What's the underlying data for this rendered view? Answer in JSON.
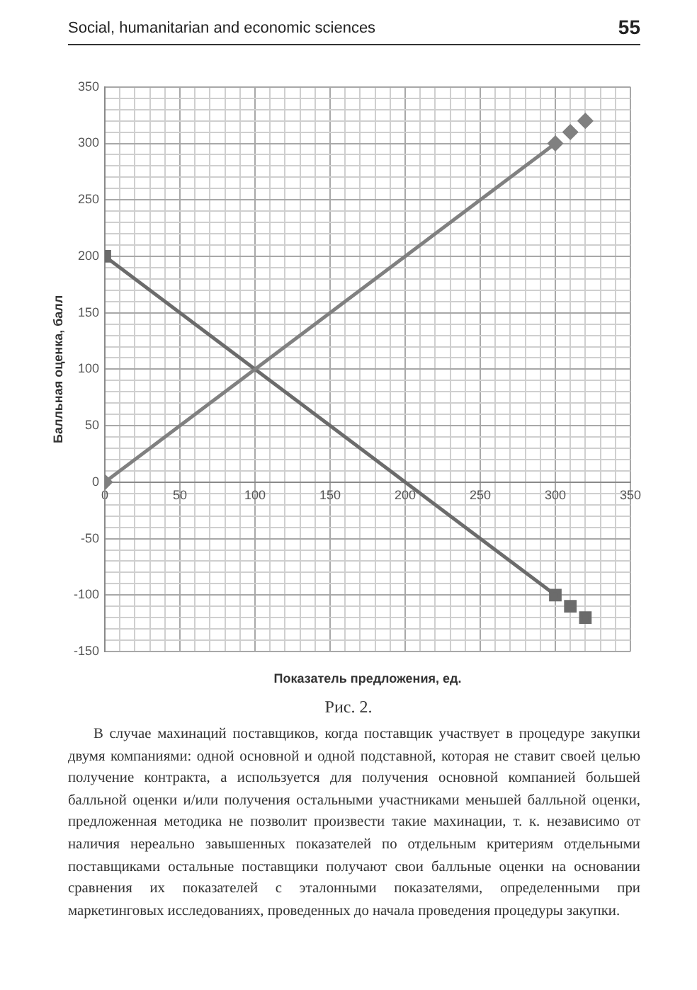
{
  "chart_data": {
    "type": "line",
    "xlabel": "Показатель предложения, ед.",
    "ylabel": "Балльная оценка, балл",
    "annotations": [
      "Social, humanitarian and economic sciences",
      "55",
      "Рис. 2.",
      "В случае махинаций поставщиков, когда поставщик участвует в процедуре закупки двумя компаниями: одной основной и одной подставной, которая не ставит своей целью получение контракта, а используется для получения основной компанией большей балльной оценки и/или получения остальными участниками меньшей балльной оценки, предложенная методика не позволит произвести такие махинации, т. к. независимо от наличия нереально завышенных показателей по отдельным критериям отдельными поставщиками остальные поставщики получают свои балльные оценки на основании сравнения их показателей с эталонными показателями, определенными при маркетинговых исследованиях, проведенных до начала проведения процедуры закупки."
    ],
    "series": [
      {
        "type": "line",
        "marker": "diamond",
        "color": "#808080",
        "x": [
          0,
          300
        ],
        "values": [
          0,
          300
        ]
      },
      {
        "type": "scatter",
        "marker": "diamond",
        "color": "#808080",
        "x": [
          310,
          320
        ],
        "values": [
          310,
          320
        ]
      },
      {
        "type": "line",
        "marker": "square",
        "color": "#6b6b6b",
        "x": [
          0,
          300
        ],
        "values": [
          200,
          -100
        ]
      },
      {
        "type": "scatter",
        "marker": "square",
        "color": "#6b6b6b",
        "x": [
          310,
          320
        ],
        "values": [
          -110,
          -120
        ]
      }
    ],
    "xlim": [
      0,
      350
    ],
    "ylim": [
      -150,
      350
    ],
    "xticks": [
      0,
      {
        "value": 10,
        "label": null
      },
      {
        "value": 20,
        "label": null
      },
      {
        "value": 30,
        "label": null
      },
      {
        "value": 40,
        "label": null
      },
      50,
      {
        "value": 60,
        "label": null
      },
      {
        "value": 70,
        "label": null
      },
      {
        "value": 80,
        "label": null
      },
      {
        "value": 90,
        "label": null
      },
      100,
      {
        "value": 110,
        "label": null
      },
      {
        "value": 120,
        "label": null
      },
      {
        "value": 130,
        "label": null
      },
      {
        "value": 140,
        "label": null
      },
      150,
      {
        "value": 160,
        "label": null
      },
      {
        "value": 170,
        "label": null
      },
      {
        "value": 180,
        "label": null
      },
      {
        "value": 190,
        "label": null
      },
      200,
      {
        "value": 210,
        "label": null
      },
      {
        "value": 220,
        "label": null
      },
      {
        "value": 230,
        "label": null
      },
      {
        "value": 240,
        "label": null
      },
      250,
      {
        "value": 260,
        "label": null
      },
      {
        "value": 270,
        "label": null
      },
      {
        "value": 280,
        "label": null
      },
      {
        "value": 290,
        "label": null
      },
      300,
      {
        "value": 310,
        "label": null
      },
      {
        "value": 320,
        "label": null
      },
      {
        "value": 330,
        "label": null
      },
      {
        "value": 340,
        "label": null
      },
      350
    ],
    "yticks": [
      -150,
      {
        "value": -140,
        "label": null
      },
      {
        "value": -130,
        "label": null
      },
      {
        "value": -120,
        "label": null
      },
      {
        "value": -110,
        "label": null
      },
      -100,
      {
        "value": -90,
        "label": null
      },
      {
        "value": -80,
        "label": null
      },
      {
        "value": -70,
        "label": null
      },
      {
        "value": -60,
        "label": null
      },
      -50,
      {
        "value": -40,
        "label": null
      },
      {
        "value": -30,
        "label": null
      },
      {
        "value": -20,
        "label": null
      },
      {
        "value": -10,
        "label": null
      },
      0,
      {
        "value": 10,
        "label": null
      },
      {
        "value": 20,
        "label": null
      },
      {
        "value": 30,
        "label": null
      },
      {
        "value": 40,
        "label": null
      },
      50,
      {
        "value": 60,
        "label": null
      },
      {
        "value": 70,
        "label": null
      },
      {
        "value": 80,
        "label": null
      },
      {
        "value": 90,
        "label": null
      },
      100,
      {
        "value": 110,
        "label": null
      },
      {
        "value": 120,
        "label": null
      },
      {
        "value": 130,
        "label": null
      },
      {
        "value": 140,
        "label": null
      },
      150,
      {
        "value": 160,
        "label": null
      },
      {
        "value": 170,
        "label": null
      },
      {
        "value": 180,
        "label": null
      },
      {
        "value": 190,
        "label": null
      },
      200,
      {
        "value": 210,
        "label": null
      },
      {
        "value": 220,
        "label": null
      },
      {
        "value": 230,
        "label": null
      },
      {
        "value": 240,
        "label": null
      },
      250,
      {
        "value": 260,
        "label": null
      },
      {
        "value": 270,
        "label": null
      },
      {
        "value": 280,
        "label": null
      },
      {
        "value": 290,
        "label": null
      },
      300,
      {
        "value": 310,
        "label": null
      },
      {
        "value": 320,
        "label": null
      },
      {
        "value": 330,
        "label": null
      },
      {
        "value": 340,
        "label": null
      },
      350
    ],
    "grid": true,
    "legend": false
  }
}
